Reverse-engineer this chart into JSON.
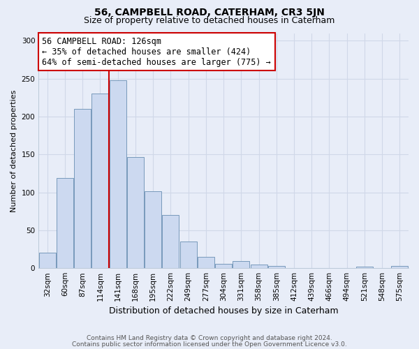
{
  "title": "56, CAMPBELL ROAD, CATERHAM, CR3 5JN",
  "subtitle": "Size of property relative to detached houses in Caterham",
  "xlabel": "Distribution of detached houses by size in Caterham",
  "ylabel": "Number of detached properties",
  "footnote1": "Contains HM Land Registry data © Crown copyright and database right 2024.",
  "footnote2": "Contains public sector information licensed under the Open Government Licence v3.0.",
  "bin_labels": [
    "32sqm",
    "60sqm",
    "87sqm",
    "114sqm",
    "141sqm",
    "168sqm",
    "195sqm",
    "222sqm",
    "249sqm",
    "277sqm",
    "304sqm",
    "331sqm",
    "358sqm",
    "385sqm",
    "412sqm",
    "439sqm",
    "466sqm",
    "494sqm",
    "521sqm",
    "548sqm",
    "575sqm"
  ],
  "bar_values": [
    20,
    119,
    210,
    230,
    248,
    147,
    101,
    70,
    35,
    15,
    6,
    9,
    5,
    3,
    0,
    0,
    0,
    0,
    2,
    0,
    3
  ],
  "bar_color": "#ccd9f0",
  "bar_edgecolor": "#7799bb",
  "vline_color": "#cc0000",
  "vline_index": 3.5,
  "annotation_text": "56 CAMPBELL ROAD: 126sqm\n← 35% of detached houses are smaller (424)\n64% of semi-detached houses are larger (775) →",
  "annotation_box_edgecolor": "#cc0000",
  "annotation_fontsize": 8.5,
  "ylim": [
    0,
    310
  ],
  "yticks": [
    0,
    50,
    100,
    150,
    200,
    250,
    300
  ],
  "title_fontsize": 10,
  "subtitle_fontsize": 9,
  "xlabel_fontsize": 9,
  "ylabel_fontsize": 8,
  "tick_labelsize": 7.5,
  "footnote_fontsize": 6.5,
  "background_color": "#e8edf8",
  "plot_background": "#e8edf8",
  "grid_color": "#d0d8e8"
}
